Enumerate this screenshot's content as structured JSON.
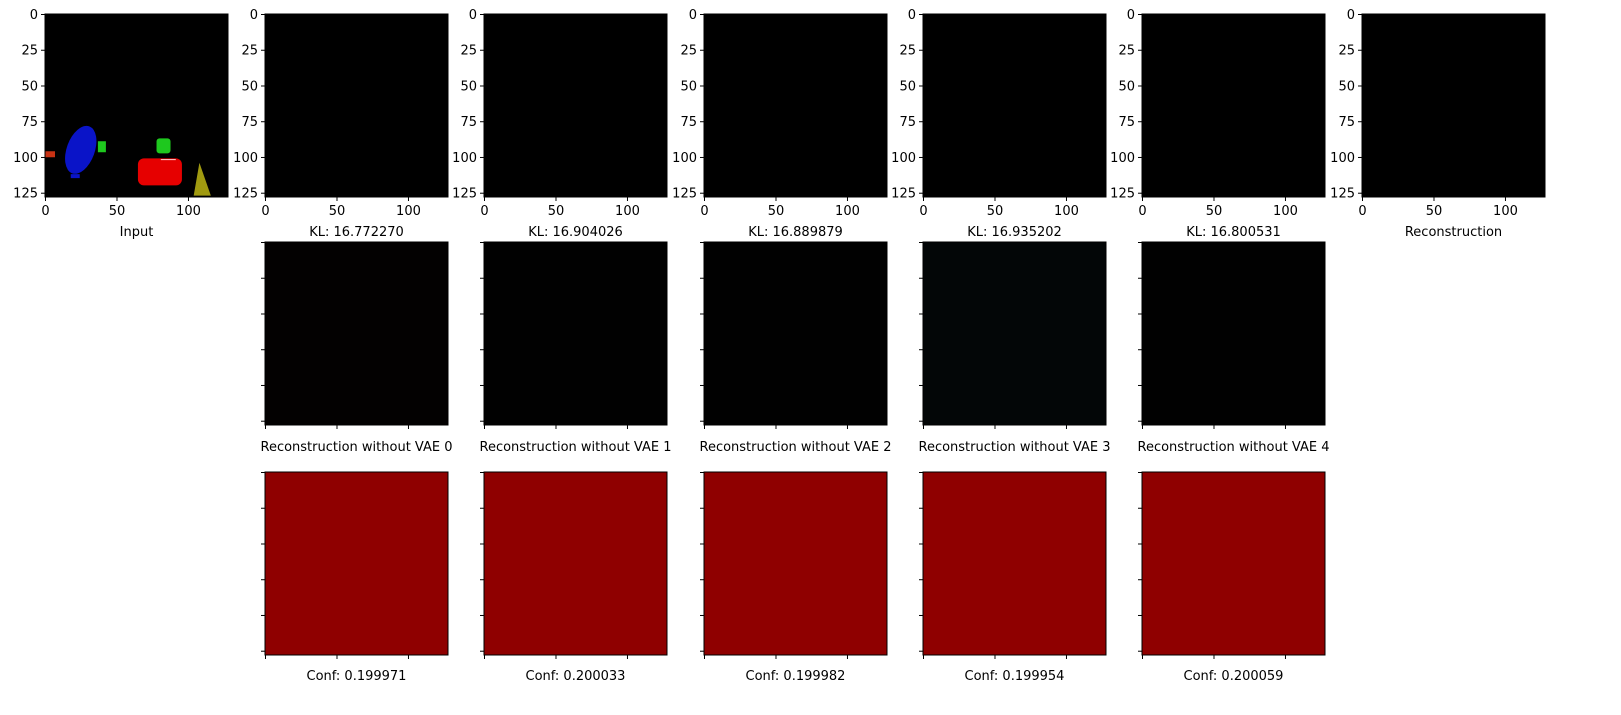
{
  "figure": {
    "top_row": {
      "tick_values": [
        0,
        50,
        100
      ],
      "ytick_values": [
        0,
        25,
        50,
        75,
        100,
        125
      ],
      "panels": [
        {
          "label": "Input",
          "kind": "input"
        },
        {
          "label": "KL: 16.772270",
          "kind": "dark",
          "fill": "#000000"
        },
        {
          "label": "KL: 16.904026",
          "kind": "dark",
          "fill": "#000000"
        },
        {
          "label": "KL: 16.889879",
          "kind": "dark",
          "fill": "#000000"
        },
        {
          "label": "KL: 16.935202",
          "kind": "dark",
          "fill": "#000000"
        },
        {
          "label": "KL: 16.800531",
          "kind": "dark",
          "fill": "#000000"
        },
        {
          "label": "Reconstruction",
          "kind": "dark",
          "fill": "#000000"
        }
      ]
    },
    "middle_row": {
      "panels": [
        {
          "label": "Reconstruction without VAE 0",
          "fill": "#030101"
        },
        {
          "label": "Reconstruction without VAE 1",
          "fill": "#010101"
        },
        {
          "label": "Reconstruction without VAE 2",
          "fill": "#010101"
        },
        {
          "label": "Reconstruction without VAE 3",
          "fill": "#030607"
        },
        {
          "label": "Reconstruction without VAE 4",
          "fill": "#010101"
        }
      ]
    },
    "bottom_row": {
      "panels": [
        {
          "label": "Conf: 0.199971",
          "fill": "#8f0000"
        },
        {
          "label": "Conf: 0.200033",
          "fill": "#8f0000"
        },
        {
          "label": "Conf: 0.199982",
          "fill": "#8f0000"
        },
        {
          "label": "Conf: 0.199954",
          "fill": "#8f0000"
        },
        {
          "label": "Conf: 0.200059",
          "fill": "#8f0000"
        }
      ]
    },
    "colors": {
      "input_blue": "#0a14c8",
      "input_green": "#1ec81e",
      "input_red": "#e60000",
      "input_olive": "#a09a10",
      "input_orange": "#c83214"
    }
  },
  "chart_data": [
    {
      "type": "image",
      "title": "",
      "xlabel": "Input",
      "xlim": [
        0,
        128
      ],
      "ylim": [
        128,
        0
      ],
      "xticks": [
        0,
        50,
        100
      ],
      "yticks": [
        0,
        25,
        50,
        75,
        100,
        125
      ]
    },
    {
      "type": "image",
      "xlabel": "KL: 16.772270",
      "xlim": [
        0,
        128
      ],
      "ylim": [
        128,
        0
      ]
    },
    {
      "type": "image",
      "xlabel": "KL: 16.904026",
      "xlim": [
        0,
        128
      ],
      "ylim": [
        128,
        0
      ]
    },
    {
      "type": "image",
      "xlabel": "KL: 16.889879",
      "xlim": [
        0,
        128
      ],
      "ylim": [
        128,
        0
      ]
    },
    {
      "type": "image",
      "xlabel": "KL: 16.935202",
      "xlim": [
        0,
        128
      ],
      "ylim": [
        128,
        0
      ]
    },
    {
      "type": "image",
      "xlabel": "KL: 16.800531",
      "xlim": [
        0,
        128
      ],
      "ylim": [
        128,
        0
      ]
    },
    {
      "type": "image",
      "xlabel": "Reconstruction",
      "xlim": [
        0,
        128
      ],
      "ylim": [
        128,
        0
      ]
    },
    {
      "type": "image",
      "xlabel": "Reconstruction without VAE 0"
    },
    {
      "type": "image",
      "xlabel": "Reconstruction without VAE 1"
    },
    {
      "type": "image",
      "xlabel": "Reconstruction without VAE 2"
    },
    {
      "type": "image",
      "xlabel": "Reconstruction without VAE 3"
    },
    {
      "type": "image",
      "xlabel": "Reconstruction without VAE 4"
    },
    {
      "type": "image",
      "xlabel": "Conf: 0.199971"
    },
    {
      "type": "image",
      "xlabel": "Conf: 0.200033"
    },
    {
      "type": "image",
      "xlabel": "Conf: 0.199982"
    },
    {
      "type": "image",
      "xlabel": "Conf: 0.199954"
    },
    {
      "type": "image",
      "xlabel": "Conf: 0.200059"
    }
  ]
}
